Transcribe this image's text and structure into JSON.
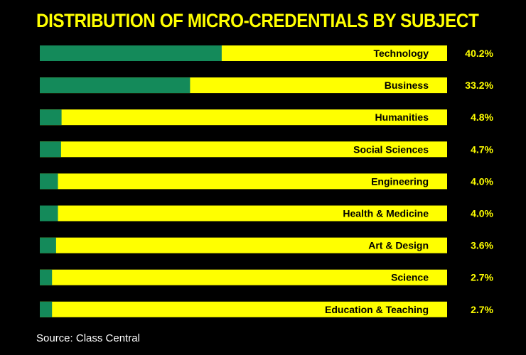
{
  "chart_data": {
    "type": "bar",
    "orientation": "horizontal",
    "title": "DISTRIBUTION OF MICRO-CREDENTIALS BY SUBJECT",
    "categories": [
      "Technology",
      "Business",
      "Humanities",
      "Social Sciences",
      "Engineering",
      "Health & Medicine",
      "Art & Design",
      "Science",
      "Education & Teaching"
    ],
    "values": [
      40.2,
      33.2,
      4.8,
      4.7,
      4.0,
      4.0,
      3.6,
      2.7,
      2.7
    ],
    "value_labels": [
      "40.2%",
      "33.2%",
      "4.8%",
      "4.7%",
      "4.0%",
      "4.0%",
      "3.6%",
      "2.7%",
      "2.7%"
    ],
    "xlim": [
      0,
      90
    ],
    "xlabel": "",
    "ylabel": "",
    "grid": false,
    "legend": "none",
    "source": "Source: Class Central"
  },
  "colors": {
    "background": "#000000",
    "title": "#FFFF00",
    "track": "#FFFF00",
    "fill": "#148A5A",
    "category_text": "#000000",
    "value_text": "#FFFF00",
    "source_text": "#FFFFFF"
  }
}
